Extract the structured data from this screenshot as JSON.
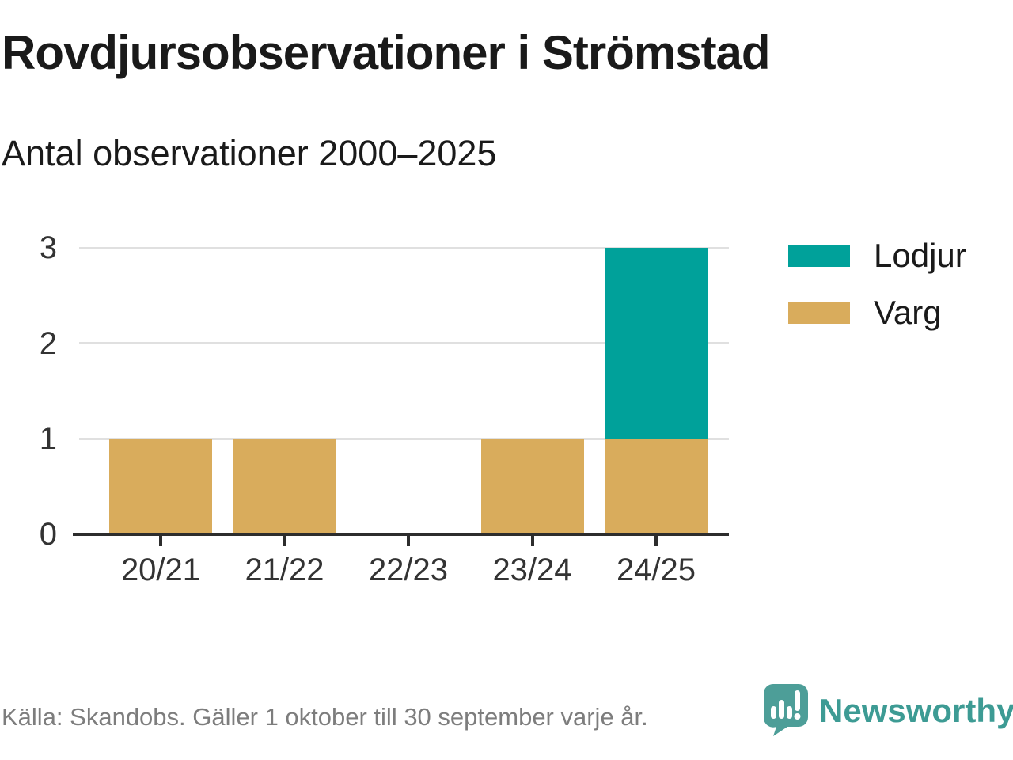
{
  "header": {
    "title": "Rovdjursobservationer i Strömstad",
    "subtitle": "Antal observationer 2000–2025"
  },
  "footer": {
    "source": "Källa: Skandobs. Gäller 1 oktober till 30 september varje år.",
    "logo_text": "Newsworthy"
  },
  "colors": {
    "lodjur_teal": "#00A19A",
    "varg_tan": "#D9AC5C",
    "axis": "#2D2D2D",
    "gridline": "#E0E0E0",
    "tick_label": "#333333",
    "source_text": "#7D7D7D",
    "logo_teal": "#3D9B94",
    "logo_icon_teal": "#4D9E98"
  },
  "chart_data": {
    "type": "bar",
    "stacked": true,
    "title": "Rovdjursobservationer i Strömstad",
    "subtitle": "Antal observationer 2000–2025",
    "categories": [
      "20/21",
      "21/22",
      "22/23",
      "23/24",
      "24/25"
    ],
    "series": [
      {
        "name": "Lodjur",
        "color": "#00A19A",
        "values": [
          0,
          0,
          0,
          0,
          2
        ]
      },
      {
        "name": "Varg",
        "color": "#D9AC5C",
        "values": [
          1,
          1,
          0,
          1,
          1
        ]
      }
    ],
    "xlabel": "",
    "ylabel": "",
    "ylim": [
      0,
      3
    ],
    "yticks": [
      0,
      1,
      2,
      3
    ],
    "grid": "horizontal-only",
    "legend_position": "top-right"
  }
}
